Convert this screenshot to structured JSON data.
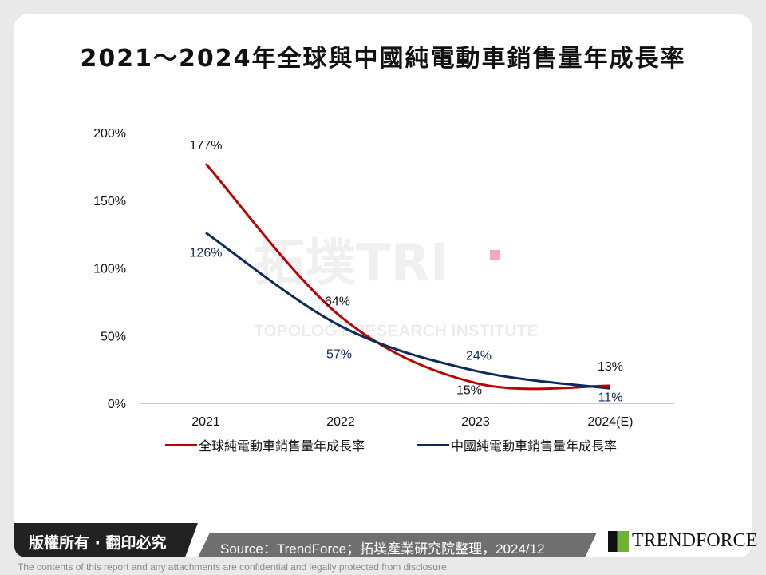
{
  "title": "2021～2024年全球與中國純電動車銷售量年成長率",
  "watermark": "TOPOLOGY RESEARCH INSTITUTE",
  "watermark_logo": "拓墣TRI",
  "chart_data": {
    "type": "line",
    "title": "2021～2024年全球與中國純電動車銷售量年成長率",
    "categories": [
      "2021",
      "2022",
      "2023",
      "2024(E)"
    ],
    "y_ticks": [
      "0%",
      "50%",
      "100%",
      "150%",
      "200%"
    ],
    "ylim": [
      0,
      200
    ],
    "grid": false,
    "legend_position": "bottom",
    "series": [
      {
        "name": "全球純電動車銷售量年成長率",
        "color": "#c00000",
        "values": [
          177,
          64,
          15,
          13
        ],
        "labels": [
          "177%",
          "64%",
          "15%",
          "13%"
        ]
      },
      {
        "name": "中國純電動車銷售量年成長率",
        "color": "#0d2a5e",
        "values": [
          126,
          57,
          24,
          11
        ],
        "labels": [
          "126%",
          "57%",
          "24%",
          "11%"
        ]
      }
    ]
  },
  "footer": {
    "copyright": "版權所有 · 翻印必究",
    "source": "Source：TrendForce；拓墣產業研究院整理，2024/12",
    "logo": "TRENDFORCE",
    "disclaimer": "The contents of this report and any attachments are confidential and legally protected from disclosure."
  }
}
